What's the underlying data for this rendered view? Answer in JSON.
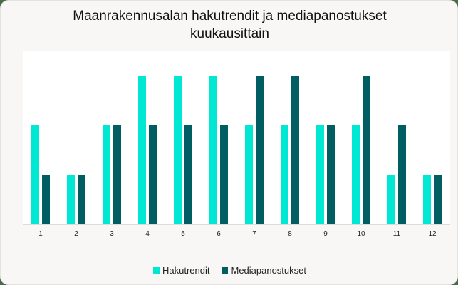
{
  "chart_data": {
    "type": "bar",
    "title": "Maanrakennusalan hakutrendit ja mediapanostukset kuukausittain",
    "xlabel": "",
    "ylabel": "",
    "categories": [
      "1",
      "2",
      "3",
      "4",
      "5",
      "6",
      "7",
      "8",
      "9",
      "10",
      "11",
      "12"
    ],
    "series": [
      {
        "name": "Hakutrendit",
        "color": "#00e8d4",
        "values": [
          2,
          1,
          2,
          3,
          3,
          3,
          2,
          2,
          2,
          2,
          1,
          1
        ]
      },
      {
        "name": "Mediapanostukset",
        "color": "#005e63",
        "values": [
          1,
          1,
          2,
          2,
          2,
          2,
          3,
          3,
          2,
          3,
          2,
          1
        ]
      }
    ],
    "ylim": [
      0,
      3
    ],
    "grid": false,
    "legend_position": "bottom"
  },
  "title_line1": "Maanrakennusalan hakutrendit ja mediapanostukset",
  "title_line2": "kuukausittain",
  "legend": [
    {
      "label": "Hakutrendit",
      "color": "#00e8d4"
    },
    {
      "label": "Mediapanostukset",
      "color": "#005e63"
    }
  ]
}
